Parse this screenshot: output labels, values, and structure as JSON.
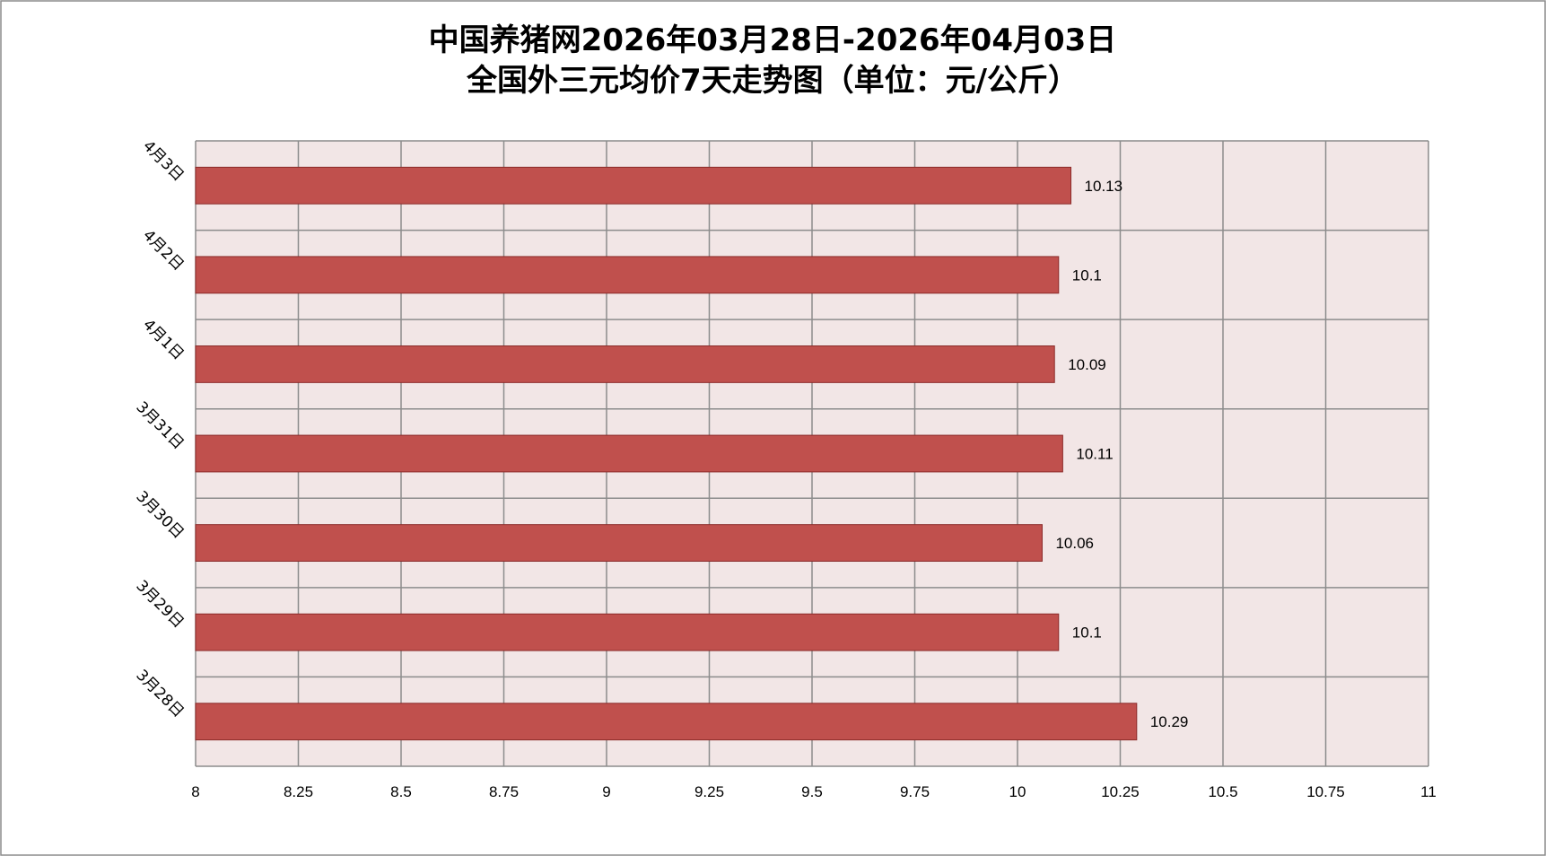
{
  "chart_data": {
    "type": "bar",
    "orientation": "horizontal",
    "title": "中国养猪网2026年03月28日-2026年04月03日",
    "subtitle": "全国外三元均价7天走势图（单位：元/公斤）",
    "categories": [
      "4月3日",
      "4月2日",
      "4月1日",
      "3月31日",
      "3月30日",
      "3月29日",
      "3月28日"
    ],
    "series": [
      {
        "values": [
          10.13,
          10.1,
          10.09,
          10.11,
          10.06,
          10.1,
          10.29
        ],
        "color": "#c0504d"
      }
    ],
    "data_labels": [
      "10.13",
      "10.1",
      "10.09",
      "10.11",
      "10.06",
      "10.1",
      "10.29"
    ],
    "xlim": [
      8,
      11
    ],
    "x_ticks": [
      8,
      8.25,
      8.5,
      8.75,
      9,
      9.25,
      9.5,
      9.75,
      10,
      10.25,
      10.5,
      10.75,
      11
    ],
    "x_tick_labels": [
      "8",
      "8.25",
      "8.5",
      "8.75",
      "9",
      "9.25",
      "9.5",
      "9.75",
      "10",
      "10.25",
      "10.5",
      "10.75",
      "11"
    ],
    "xlabel": "",
    "ylabel": "",
    "grid": true,
    "legend": "none",
    "colors": {
      "bar_fill": "#c0504d",
      "bar_stroke": "#8b2b2a",
      "plot_background": "#f2e6e6",
      "grid": "#8c8c8c",
      "frame": "#8c8c8c"
    }
  }
}
